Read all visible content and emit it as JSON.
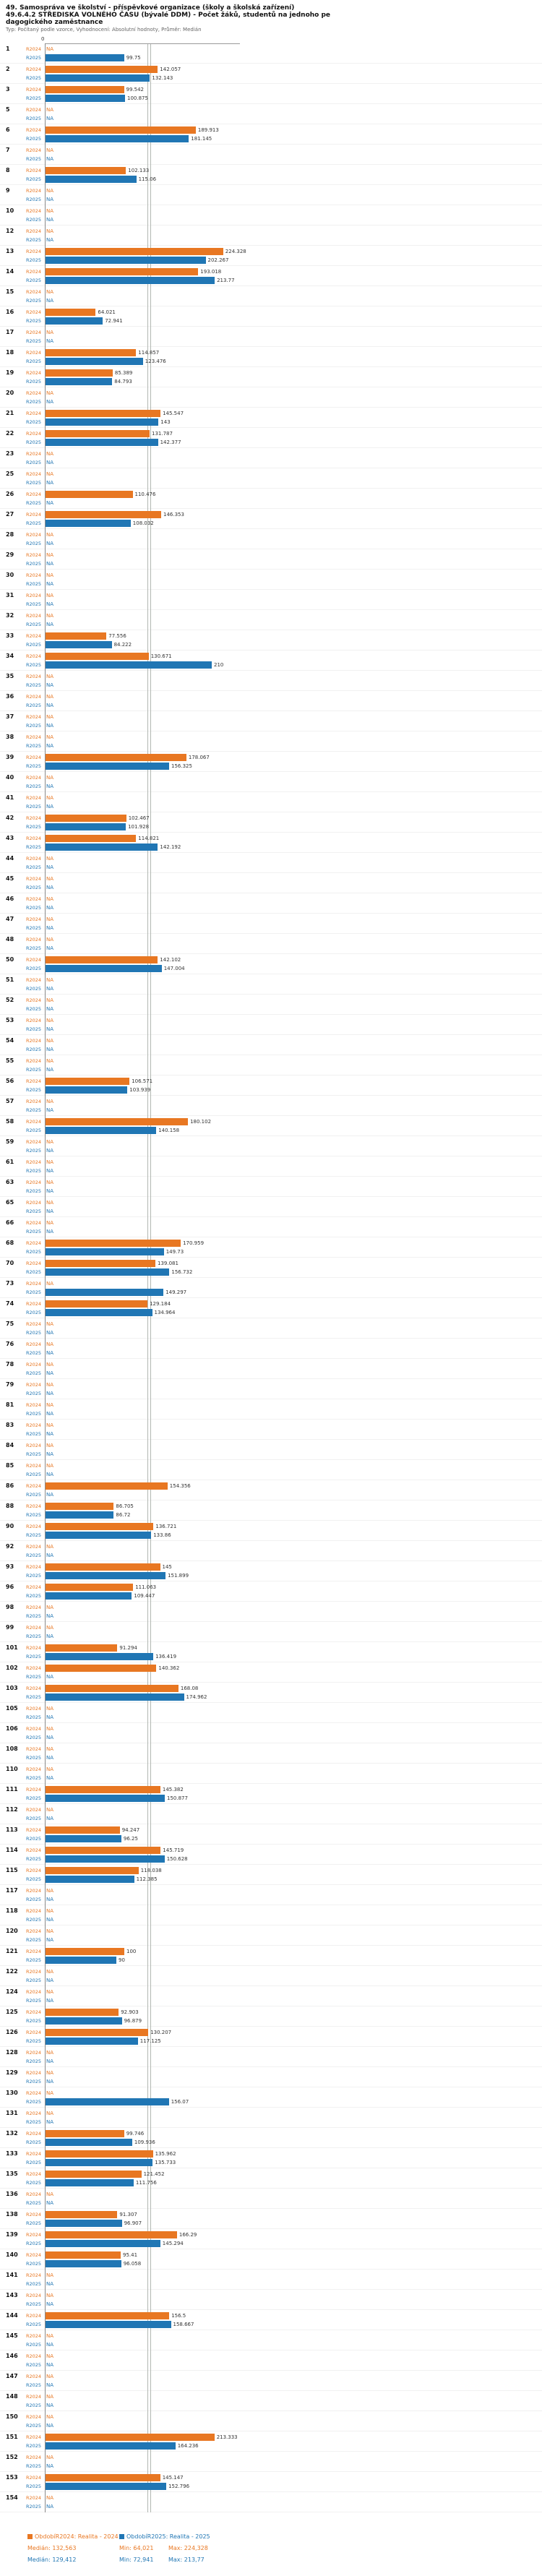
{
  "header": {
    "title_lines": [
      "49. Samospráva ve školství - příspěvkové organizace (školy a školská zařízení)",
      "49.6.4.2 STŘEDISKA VOLNÉHO ČASU (bývalé DDM) - Počet žáků, studentů na jednoho pe",
      "dagogického zaměstnance"
    ],
    "meta": "Typ: Počítaný podle vzorce, Vyhodnocení: Absolutní hodnoty, Průměr: Medián"
  },
  "chart_data": {
    "type": "bar",
    "orientation": "horizontal",
    "title": "49.6.4.2 STŘEDISKA VOLNÉHO ČASU (bývalé DDM) - Počet žáků, studentů na jednoho pedagogického zaměstnance",
    "xlabel": "",
    "ylabel": "",
    "xlim": [
      0,
      240
    ],
    "zero_label": "0",
    "na_label": "NA",
    "grid": false,
    "legend_position": "bottom",
    "series_labels": {
      "r2024": "R2024",
      "r2025": "R2025"
    },
    "colors": {
      "r2024": "#E87722",
      "r2025": "#2076B4"
    },
    "medians": {
      "r2024": 132.563,
      "r2025": 129.412
    },
    "stats": {
      "r2024": {
        "median": 132.563,
        "min": 64.021,
        "max": 224.328
      },
      "r2025": {
        "median": 129.412,
        "min": 72.941,
        "max": 213.77
      }
    },
    "rows": [
      [
        "1",
        null,
        99.75
      ],
      [
        "2",
        142.057,
        132.143
      ],
      [
        "3",
        99.542,
        100.875
      ],
      [
        "5",
        null,
        null
      ],
      [
        "6",
        189.913,
        181.145
      ],
      [
        "7",
        null,
        null
      ],
      [
        "8",
        102.133,
        115.06
      ],
      [
        "9",
        null,
        null
      ],
      [
        "10",
        null,
        null
      ],
      [
        "12",
        null,
        null
      ],
      [
        "13",
        224.328,
        202.267
      ],
      [
        "14",
        193.018,
        213.77
      ],
      [
        "15",
        null,
        null
      ],
      [
        "16",
        64.021,
        72.941
      ],
      [
        "17",
        null,
        null
      ],
      [
        "18",
        114.857,
        123.476
      ],
      [
        "19",
        85.389,
        84.793
      ],
      [
        "20",
        null,
        null
      ],
      [
        "21",
        145.547,
        143
      ],
      [
        "22",
        131.787,
        142.377
      ],
      [
        "23",
        null,
        null
      ],
      [
        "25",
        null,
        null
      ],
      [
        "26",
        110.476,
        null
      ],
      [
        "27",
        146.353,
        108.032
      ],
      [
        "28",
        null,
        null
      ],
      [
        "29",
        null,
        null
      ],
      [
        "30",
        null,
        null
      ],
      [
        "31",
        null,
        null
      ],
      [
        "32",
        null,
        null
      ],
      [
        "33",
        77.556,
        84.222
      ],
      [
        "34",
        130.671,
        210
      ],
      [
        "35",
        null,
        null
      ],
      [
        "36",
        null,
        null
      ],
      [
        "37",
        null,
        null
      ],
      [
        "38",
        null,
        null
      ],
      [
        "39",
        178.067,
        156.325
      ],
      [
        "40",
        null,
        null
      ],
      [
        "41",
        null,
        null
      ],
      [
        "42",
        102.467,
        101.928
      ],
      [
        "43",
        114.821,
        142.192
      ],
      [
        "44",
        null,
        null
      ],
      [
        "45",
        null,
        null
      ],
      [
        "46",
        null,
        null
      ],
      [
        "47",
        null,
        null
      ],
      [
        "48",
        null,
        null
      ],
      [
        "50",
        142.102,
        147.004
      ],
      [
        "51",
        null,
        null
      ],
      [
        "52",
        null,
        null
      ],
      [
        "53",
        null,
        null
      ],
      [
        "54",
        null,
        null
      ],
      [
        "55",
        null,
        null
      ],
      [
        "56",
        106.571,
        103.939
      ],
      [
        "57",
        null,
        null
      ],
      [
        "58",
        180.102,
        140.158
      ],
      [
        "59",
        null,
        null
      ],
      [
        "61",
        null,
        null
      ],
      [
        "63",
        null,
        null
      ],
      [
        "65",
        null,
        null
      ],
      [
        "66",
        null,
        null
      ],
      [
        "68",
        170.959,
        149.73
      ],
      [
        "70",
        139.081,
        156.732
      ],
      [
        "73",
        null,
        149.297
      ],
      [
        "74",
        129.184,
        134.964
      ],
      [
        "75",
        null,
        null
      ],
      [
        "76",
        null,
        null
      ],
      [
        "78",
        null,
        null
      ],
      [
        "79",
        null,
        null
      ],
      [
        "81",
        null,
        null
      ],
      [
        "83",
        null,
        null
      ],
      [
        "84",
        null,
        null
      ],
      [
        "85",
        null,
        null
      ],
      [
        "86",
        154.356,
        null
      ],
      [
        "88",
        86.705,
        86.72
      ],
      [
        "90",
        136.721,
        133.86
      ],
      [
        "92",
        null,
        null
      ],
      [
        "93",
        145,
        151.899
      ],
      [
        "96",
        111.063,
        109.447
      ],
      [
        "98",
        null,
        null
      ],
      [
        "99",
        null,
        null
      ],
      [
        "101",
        91.294,
        136.419
      ],
      [
        "102",
        140.362,
        null
      ],
      [
        "103",
        168.08,
        174.962
      ],
      [
        "105",
        null,
        null
      ],
      [
        "106",
        null,
        null
      ],
      [
        "108",
        null,
        null
      ],
      [
        "110",
        null,
        null
      ],
      [
        "111",
        145.382,
        150.877
      ],
      [
        "112",
        null,
        null
      ],
      [
        "113",
        94.247,
        96.25
      ],
      [
        "114",
        145.719,
        150.628
      ],
      [
        "115",
        118.038,
        112.385
      ],
      [
        "117",
        null,
        null
      ],
      [
        "118",
        null,
        null
      ],
      [
        "120",
        null,
        null
      ],
      [
        "121",
        100,
        90
      ],
      [
        "122",
        null,
        null
      ],
      [
        "124",
        null,
        null
      ],
      [
        "125",
        92.903,
        96.879
      ],
      [
        "126",
        130.207,
        117.125
      ],
      [
        "128",
        null,
        null
      ],
      [
        "129",
        null,
        null
      ],
      [
        "130",
        null,
        156.07
      ],
      [
        "131",
        null,
        null
      ],
      [
        "132",
        99.746,
        109.936
      ],
      [
        "133",
        135.962,
        135.733
      ],
      [
        "135",
        121.452,
        111.756
      ],
      [
        "136",
        null,
        null
      ],
      [
        "138",
        91.307,
        96.907
      ],
      [
        "139",
        166.29,
        145.294
      ],
      [
        "140",
        95.41,
        96.058
      ],
      [
        "141",
        null,
        null
      ],
      [
        "143",
        null,
        null
      ],
      [
        "144",
        156.5,
        158.667
      ],
      [
        "145",
        null,
        null
      ],
      [
        "146",
        null,
        null
      ],
      [
        "147",
        null,
        null
      ],
      [
        "148",
        null,
        null
      ],
      [
        "150",
        null,
        null
      ],
      [
        "151",
        213.333,
        164.236
      ],
      [
        "152",
        null,
        null
      ],
      [
        "153",
        145.147,
        152.796
      ],
      [
        "154",
        null,
        null
      ]
    ]
  },
  "legend": {
    "r2024": {
      "label": "ObdobíR2024: Realita - 2024",
      "median": "Medián: 132,563",
      "min": "Min: 64,021",
      "max": "Max: 224,328"
    },
    "r2025": {
      "label": "ObdobíR2025: Realita - 2025",
      "median": "Medián: 129,412",
      "min": "Min: 72,941",
      "max": "Max: 213,77"
    }
  }
}
